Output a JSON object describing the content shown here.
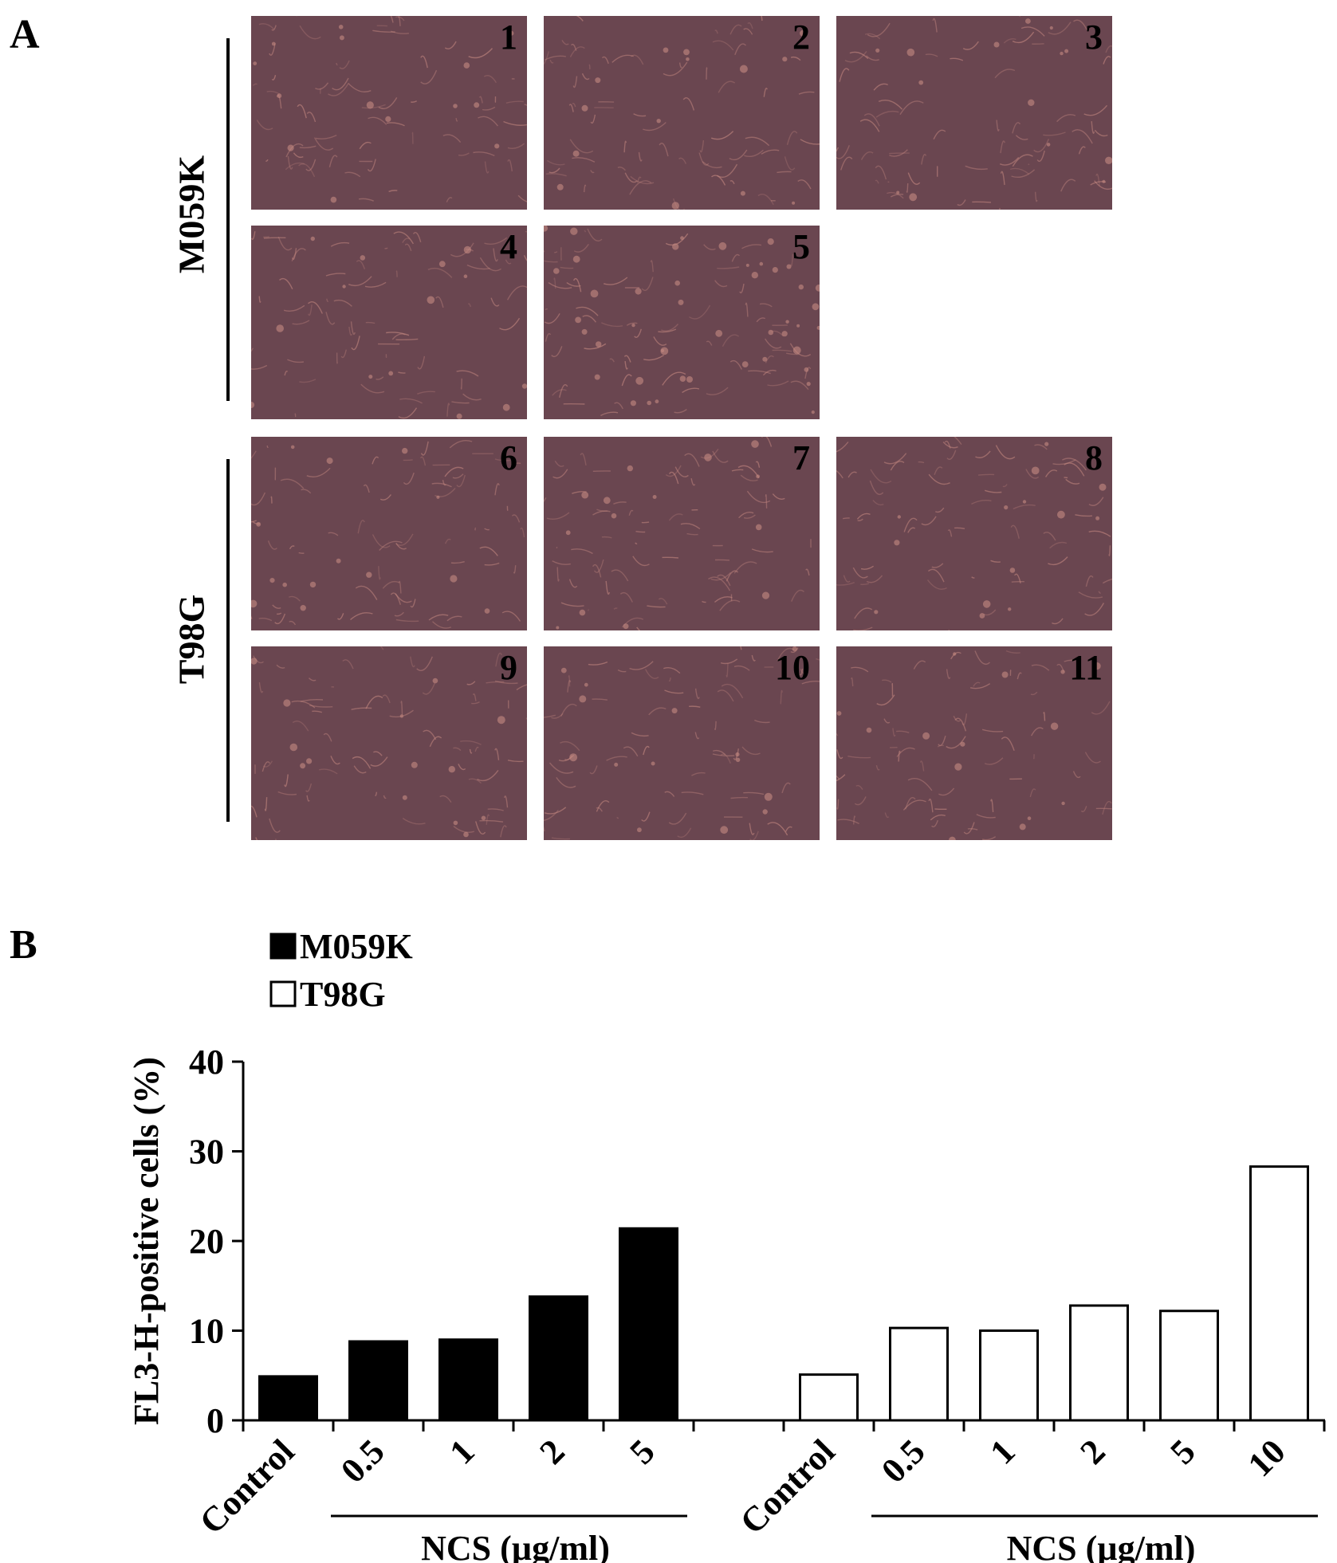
{
  "panel_a": {
    "letter": "A",
    "groups": [
      {
        "label": "M059K",
        "images": [
          "1",
          "2",
          "3",
          "4",
          "5"
        ]
      },
      {
        "label": "T98G",
        "images": [
          "6",
          "7",
          "8",
          "9",
          "10",
          "11"
        ]
      }
    ]
  },
  "panel_b": {
    "letter": "B"
  },
  "colors": {
    "micrograph": "#6a4650",
    "cell": "#c78a82",
    "m059k_bar": "#000000",
    "t98g_bar": "#ffffff"
  },
  "chart_data": {
    "type": "bar",
    "ylabel": "FL3-H-positive cells (%)",
    "ylim": [
      0,
      40
    ],
    "yticks": [
      0,
      10,
      20,
      30,
      40
    ],
    "grid": false,
    "legend_position": "top-left",
    "groups": [
      {
        "series": "M059K",
        "categories": [
          "Control",
          "0.5",
          "1",
          "2",
          "5"
        ],
        "values": [
          4.9,
          8.8,
          9.0,
          13.8,
          21.4
        ],
        "treatment_label": "NCS (µg/ml)"
      },
      {
        "series": "T98G",
        "categories": [
          "Control",
          "0.5",
          "1",
          "2",
          "5",
          "10"
        ],
        "values": [
          5.1,
          10.3,
          10.0,
          12.8,
          12.2,
          28.3
        ],
        "treatment_label": "NCS (µg/ml)"
      }
    ],
    "legend": [
      {
        "name": "M059K",
        "fill": "black"
      },
      {
        "name": "T98G",
        "fill": "white"
      }
    ]
  }
}
